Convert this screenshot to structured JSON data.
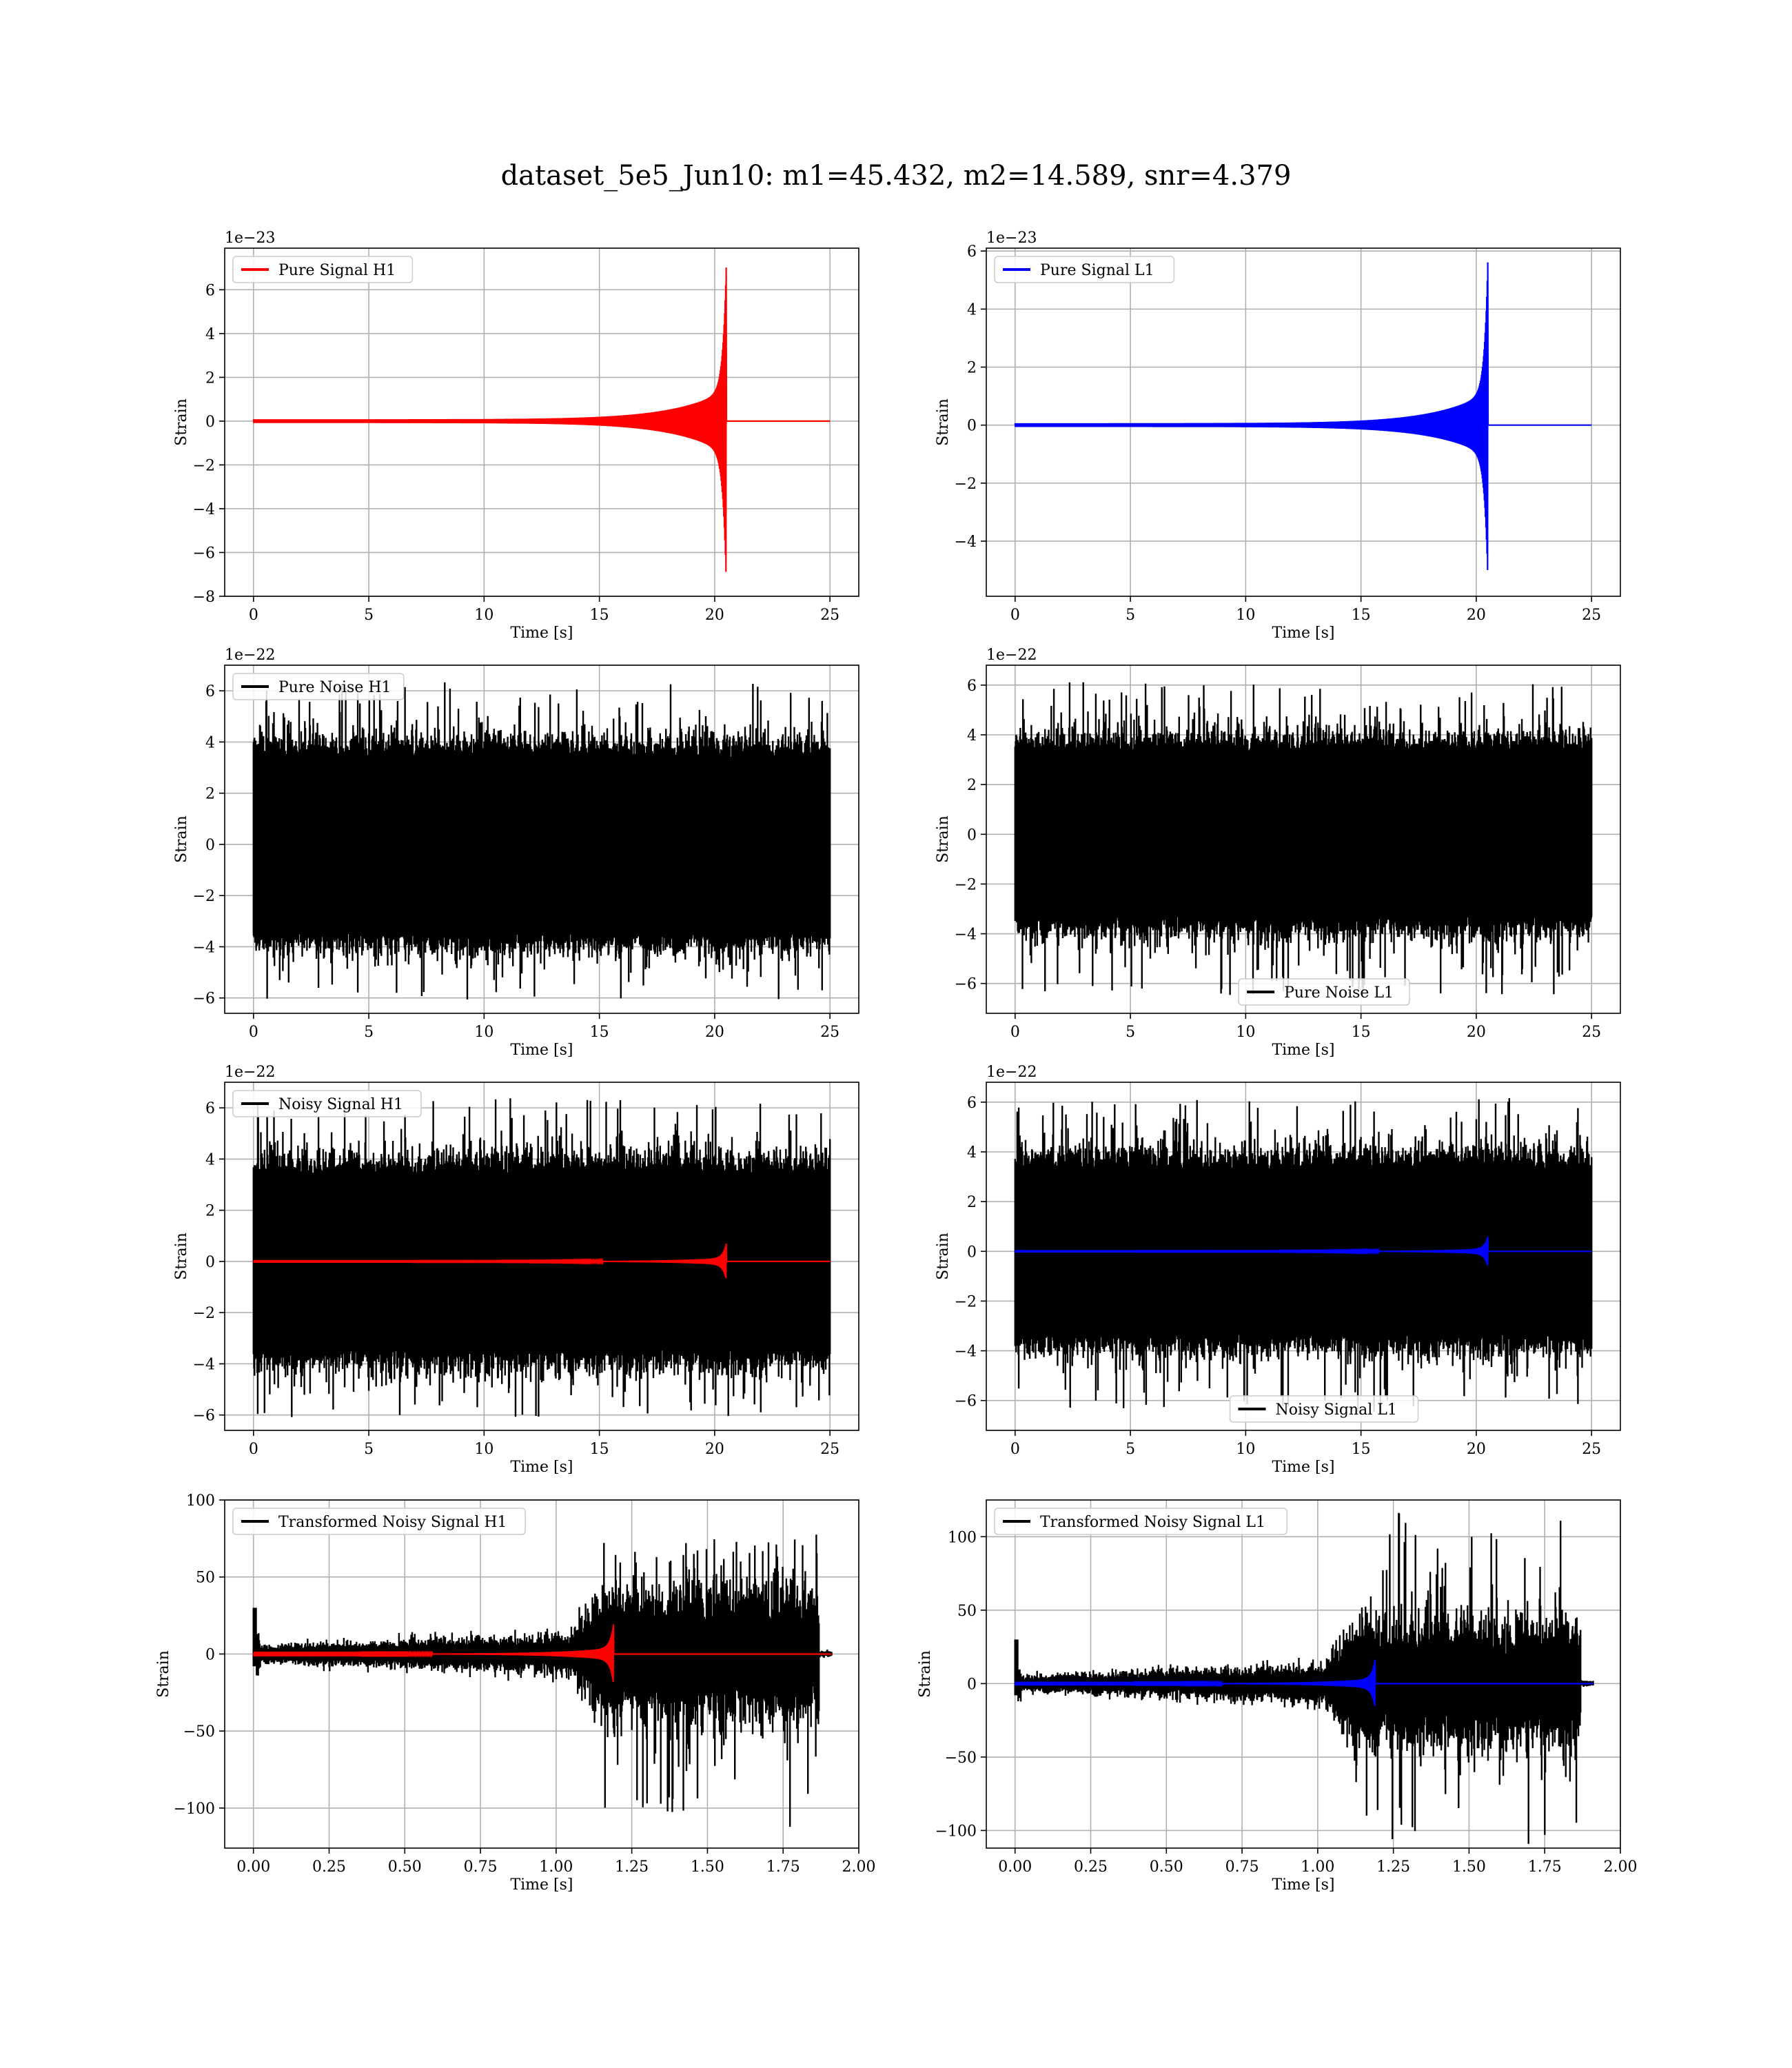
{
  "title": "dataset_5e5_Jun10: m1=45.432, m2=14.589, snr=4.379",
  "colors": {
    "h1_signal": "#ff0000",
    "l1_signal": "#0000ff",
    "noise": "#000000",
    "grid": "#b0b0b0"
  },
  "chart_data": [
    {
      "id": "pure-signal-h1",
      "type": "line",
      "kind": "chirp",
      "ylabel": "Strain",
      "xlabel": "Time [s]",
      "offset_text": "1e−23",
      "xlim": [
        -1.25,
        26.25
      ],
      "ylim": [
        -8,
        7.9
      ],
      "xticks": [
        0,
        5,
        10,
        15,
        20,
        25
      ],
      "xtick_labels": [
        "0",
        "5",
        "10",
        "15",
        "20",
        "25"
      ],
      "yticks": [
        -8,
        -6,
        -4,
        -2,
        0,
        2,
        4,
        6
      ],
      "ytick_labels": [
        "−8",
        "−6",
        "−4",
        "−2",
        "0",
        "2",
        "4",
        "6"
      ],
      "legend": {
        "position": "upper left",
        "entries": [
          {
            "label": "Pure Signal H1",
            "color": "#ff0000"
          }
        ]
      },
      "series": [
        {
          "name": "Pure Signal H1",
          "color": "#ff0000",
          "x_range": [
            0,
            25
          ],
          "merger_time": 20.5,
          "peak": 7.0,
          "trough": -7.3
        }
      ]
    },
    {
      "id": "pure-signal-l1",
      "type": "line",
      "kind": "chirp",
      "ylabel": "Strain",
      "xlabel": "Time [s]",
      "offset_text": "1e−23",
      "xlim": [
        -1.25,
        26.25
      ],
      "ylim": [
        -5.9,
        6.1
      ],
      "xticks": [
        0,
        5,
        10,
        15,
        20,
        25
      ],
      "xtick_labels": [
        "0",
        "5",
        "10",
        "15",
        "20",
        "25"
      ],
      "yticks": [
        -4,
        -2,
        0,
        2,
        4,
        6
      ],
      "ytick_labels": [
        "−4",
        "−2",
        "0",
        "2",
        "4",
        "6"
      ],
      "legend": {
        "position": "upper left",
        "entries": [
          {
            "label": "Pure Signal L1",
            "color": "#0000ff"
          }
        ]
      },
      "series": [
        {
          "name": "Pure Signal L1",
          "color": "#0000ff",
          "x_range": [
            0,
            25
          ],
          "merger_time": 20.5,
          "peak": 5.6,
          "trough": -5.3
        }
      ]
    },
    {
      "id": "pure-noise-h1",
      "type": "line",
      "kind": "noise",
      "ylabel": "Strain",
      "xlabel": "Time [s]",
      "offset_text": "1e−22",
      "xlim": [
        -1.25,
        26.25
      ],
      "ylim": [
        -6.6,
        7.0
      ],
      "xticks": [
        0,
        5,
        10,
        15,
        20,
        25
      ],
      "xtick_labels": [
        "0",
        "5",
        "10",
        "15",
        "20",
        "25"
      ],
      "yticks": [
        -6,
        -4,
        -2,
        0,
        2,
        4,
        6
      ],
      "ytick_labels": [
        "−6",
        "−4",
        "−2",
        "0",
        "2",
        "4",
        "6"
      ],
      "legend": {
        "position": "upper left",
        "entries": [
          {
            "label": "Pure Noise H1",
            "color": "#000000"
          }
        ]
      },
      "series": [
        {
          "name": "Pure Noise H1",
          "color": "#000000",
          "x_range": [
            0,
            25
          ],
          "core": 3.4,
          "max": 6.4,
          "min": -6.1
        }
      ]
    },
    {
      "id": "pure-noise-l1",
      "type": "line",
      "kind": "noise",
      "ylabel": "Strain",
      "xlabel": "Time [s]",
      "offset_text": "1e−22",
      "xlim": [
        -1.25,
        26.25
      ],
      "ylim": [
        -7.2,
        6.8
      ],
      "xticks": [
        0,
        5,
        10,
        15,
        20,
        25
      ],
      "xtick_labels": [
        "0",
        "5",
        "10",
        "15",
        "20",
        "25"
      ],
      "yticks": [
        -6,
        -4,
        -2,
        0,
        2,
        4,
        6
      ],
      "ytick_labels": [
        "−6",
        "−4",
        "−2",
        "0",
        "2",
        "4",
        "6"
      ],
      "legend": {
        "position": "lower center",
        "entries": [
          {
            "label": "Pure Noise L1",
            "color": "#000000"
          }
        ]
      },
      "series": [
        {
          "name": "Pure Noise L1",
          "color": "#000000",
          "x_range": [
            0,
            25
          ],
          "core": 3.3,
          "max": 6.2,
          "min": -6.5
        }
      ]
    },
    {
      "id": "noisy-signal-h1",
      "type": "line",
      "kind": "noise+chirp",
      "ylabel": "Strain",
      "xlabel": "Time [s]",
      "offset_text": "1e−22",
      "xlim": [
        -1.25,
        26.25
      ],
      "ylim": [
        -6.6,
        7.0
      ],
      "xticks": [
        0,
        5,
        10,
        15,
        20,
        25
      ],
      "xtick_labels": [
        "0",
        "5",
        "10",
        "15",
        "20",
        "25"
      ],
      "yticks": [
        -6,
        -4,
        -2,
        0,
        2,
        4,
        6
      ],
      "ytick_labels": [
        "−6",
        "−4",
        "−2",
        "0",
        "2",
        "4",
        "6"
      ],
      "legend": {
        "position": "upper left",
        "entries": [
          {
            "label": "Noisy Signal H1",
            "color": "#000000"
          }
        ]
      },
      "series": [
        {
          "name": "Noisy Signal H1",
          "color": "#000000",
          "x_range": [
            0,
            25
          ],
          "core": 3.4,
          "max": 6.4,
          "min": -6.1
        },
        {
          "color": "#ff0000",
          "x_range": [
            0,
            25
          ],
          "merger_time": 20.5,
          "peak": 0.7,
          "trough": -0.7
        }
      ]
    },
    {
      "id": "noisy-signal-l1",
      "type": "line",
      "kind": "noise+chirp",
      "ylabel": "Strain",
      "xlabel": "Time [s]",
      "offset_text": "1e−22",
      "xlim": [
        -1.25,
        26.25
      ],
      "ylim": [
        -7.2,
        6.8
      ],
      "xticks": [
        0,
        5,
        10,
        15,
        20,
        25
      ],
      "xtick_labels": [
        "0",
        "5",
        "10",
        "15",
        "20",
        "25"
      ],
      "yticks": [
        -6,
        -4,
        -2,
        0,
        2,
        4,
        6
      ],
      "ytick_labels": [
        "−6",
        "−4",
        "−2",
        "0",
        "2",
        "4",
        "6"
      ],
      "legend": {
        "position": "lower center",
        "entries": [
          {
            "label": "Noisy Signal L1",
            "color": "#000000"
          }
        ]
      },
      "series": [
        {
          "name": "Noisy Signal L1",
          "color": "#000000",
          "x_range": [
            0,
            25
          ],
          "core": 3.3,
          "max": 6.2,
          "min": -6.5
        },
        {
          "color": "#0000ff",
          "x_range": [
            0,
            25
          ],
          "merger_time": 20.5,
          "peak": 0.6,
          "trough": -0.6
        }
      ]
    },
    {
      "id": "transformed-noisy-signal-h1",
      "type": "line",
      "kind": "transformed",
      "ylabel": "Strain",
      "xlabel": "Time [s]",
      "offset_text": "",
      "xlim": [
        -0.095,
        2.0
      ],
      "ylim": [
        -126,
        100
      ],
      "xticks": [
        0,
        0.25,
        0.5,
        0.75,
        1.0,
        1.25,
        1.5,
        1.75,
        2.0
      ],
      "xtick_labels": [
        "0.00",
        "0.25",
        "0.50",
        "0.75",
        "1.00",
        "1.25",
        "1.50",
        "1.75",
        "2.00"
      ],
      "yticks": [
        -100,
        -50,
        0,
        50,
        100
      ],
      "ytick_labels": [
        "−100",
        "−50",
        "0",
        "50",
        "100"
      ],
      "legend": {
        "position": "upper left",
        "entries": [
          {
            "label": "Transformed Noisy Signal H1",
            "color": "#000000"
          }
        ]
      },
      "series": [
        {
          "name": "Transformed Noisy Signal H1",
          "color": "#000000",
          "x_range": [
            0,
            1.91
          ],
          "step_time": 1.15,
          "end_time": 1.87,
          "max": 78,
          "min": -114
        },
        {
          "color": "#ff0000",
          "x_range": [
            0,
            1.91
          ],
          "merger_time": 1.19,
          "peak": 20,
          "trough": -20
        }
      ]
    },
    {
      "id": "transformed-noisy-signal-l1",
      "type": "line",
      "kind": "transformed",
      "ylabel": "Strain",
      "xlabel": "Time [s]",
      "offset_text": "",
      "xlim": [
        -0.095,
        2.0
      ],
      "ylim": [
        -112,
        125
      ],
      "xticks": [
        0,
        0.25,
        0.5,
        0.75,
        1.0,
        1.25,
        1.5,
        1.75,
        2.0
      ],
      "xtick_labels": [
        "0.00",
        "0.25",
        "0.50",
        "0.75",
        "1.00",
        "1.25",
        "1.50",
        "1.75",
        "2.00"
      ],
      "yticks": [
        -100,
        -50,
        0,
        50,
        100
      ],
      "ytick_labels": [
        "−100",
        "−50",
        "0",
        "50",
        "100"
      ],
      "legend": {
        "position": "upper left",
        "entries": [
          {
            "label": "Transformed Noisy Signal L1",
            "color": "#000000"
          }
        ]
      },
      "series": [
        {
          "name": "Transformed Noisy Signal L1",
          "color": "#000000",
          "x_range": [
            0,
            1.91
          ],
          "step_time": 1.12,
          "end_time": 1.87,
          "max": 117,
          "min": -111
        },
        {
          "color": "#0000ff",
          "x_range": [
            0,
            1.91
          ],
          "merger_time": 1.19,
          "peak": 17,
          "trough": -17
        }
      ]
    }
  ]
}
